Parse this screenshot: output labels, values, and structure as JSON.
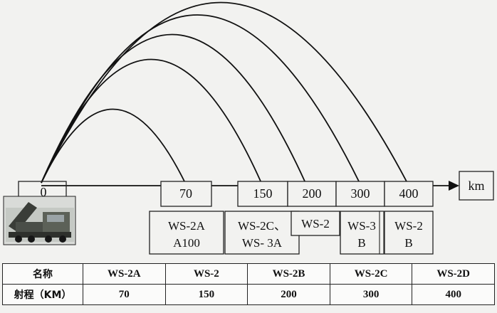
{
  "axis_unit": "km",
  "origin_label": "0",
  "range_marks": [
    {
      "label": "70",
      "range_km": 70
    },
    {
      "label": "150",
      "range_km": 150
    },
    {
      "label": "200",
      "range_km": 200
    },
    {
      "label": "300",
      "range_km": 300
    },
    {
      "label": "400",
      "range_km": 400
    }
  ],
  "system_boxes": [
    {
      "line1": "WS-2A",
      "line2": "A100"
    },
    {
      "line1": "WS-2C、",
      "line2": "WS- 3A"
    },
    {
      "line1": "WS-2",
      "line2": ""
    },
    {
      "line1": "WS-3",
      "line2": "B"
    },
    {
      "line1": "WS-2",
      "line2": "B"
    }
  ],
  "table": {
    "name_header": "名称",
    "range_header": "射程（KM）",
    "columns": [
      {
        "name": "WS-2A",
        "range": "70"
      },
      {
        "name": "WS-2",
        "range": "150"
      },
      {
        "name": "WS-2B",
        "range": "200"
      },
      {
        "name": "WS-2C",
        "range": "300"
      },
      {
        "name": "WS-2D",
        "range": "400"
      }
    ]
  },
  "trajectories": [
    {
      "range_km": 70
    },
    {
      "range_km": 150
    },
    {
      "range_km": 200
    },
    {
      "range_km": 300
    },
    {
      "range_km": 400
    }
  ],
  "colors": {
    "ink": "#111111",
    "background": "#f2f2f0"
  },
  "icons": [
    "rocket-launcher-truck-icon",
    "axis-arrow-icon"
  ]
}
